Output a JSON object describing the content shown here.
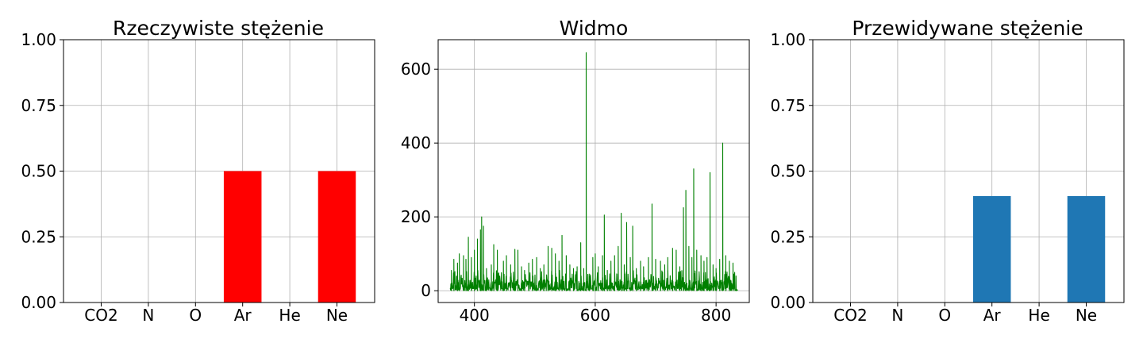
{
  "chart_data": [
    {
      "type": "bar",
      "title": "Rzeczywiste stężenie",
      "categories": [
        "CO2",
        "N",
        "O",
        "Ar",
        "He",
        "Ne"
      ],
      "values": [
        0,
        0,
        0,
        0.5,
        0,
        0.5
      ],
      "ylim": [
        0,
        1
      ],
      "yticks": [
        0,
        0.25,
        0.5,
        0.75,
        1.0
      ],
      "ytick_labels": [
        "0.00",
        "0.25",
        "0.50",
        "0.75",
        "1.00"
      ],
      "xlabel": "",
      "ylabel": "",
      "color": "#ff0000",
      "grid": true
    },
    {
      "type": "line",
      "title": "Widmo",
      "x_range": [
        360,
        836
      ],
      "xlim": [
        340,
        855
      ],
      "xticks": [
        400,
        600,
        800
      ],
      "xtick_labels": [
        "400",
        "600",
        "800"
      ],
      "ylim": [
        -32,
        680
      ],
      "yticks": [
        0,
        200,
        400,
        600
      ],
      "ytick_labels": [
        "0",
        "200",
        "400",
        "600"
      ],
      "xlabel": "",
      "ylabel": "",
      "color": "#008000",
      "grid": true,
      "peaks": [
        {
          "x": 362,
          "y": 55
        },
        {
          "x": 366,
          "y": 85
        },
        {
          "x": 372,
          "y": 75
        },
        {
          "x": 375,
          "y": 100
        },
        {
          "x": 382,
          "y": 95
        },
        {
          "x": 386,
          "y": 85
        },
        {
          "x": 390,
          "y": 145
        },
        {
          "x": 395,
          "y": 90
        },
        {
          "x": 400,
          "y": 110
        },
        {
          "x": 405,
          "y": 140
        },
        {
          "x": 410,
          "y": 165
        },
        {
          "x": 412,
          "y": 200
        },
        {
          "x": 415,
          "y": 175
        },
        {
          "x": 420,
          "y": 60
        },
        {
          "x": 428,
          "y": 70
        },
        {
          "x": 432,
          "y": 125
        },
        {
          "x": 438,
          "y": 110
        },
        {
          "x": 448,
          "y": 80
        },
        {
          "x": 453,
          "y": 95
        },
        {
          "x": 460,
          "y": 70
        },
        {
          "x": 467,
          "y": 112
        },
        {
          "x": 472,
          "y": 110
        },
        {
          "x": 478,
          "y": 65
        },
        {
          "x": 483,
          "y": 55
        },
        {
          "x": 490,
          "y": 75
        },
        {
          "x": 496,
          "y": 85
        },
        {
          "x": 503,
          "y": 90
        },
        {
          "x": 509,
          "y": 60
        },
        {
          "x": 515,
          "y": 70
        },
        {
          "x": 522,
          "y": 120
        },
        {
          "x": 528,
          "y": 115
        },
        {
          "x": 534,
          "y": 100
        },
        {
          "x": 540,
          "y": 80
        },
        {
          "x": 545,
          "y": 150
        },
        {
          "x": 552,
          "y": 95
        },
        {
          "x": 558,
          "y": 70
        },
        {
          "x": 564,
          "y": 60
        },
        {
          "x": 570,
          "y": 65
        },
        {
          "x": 576,
          "y": 130
        },
        {
          "x": 581,
          "y": 60
        },
        {
          "x": 585,
          "y": 645
        },
        {
          "x": 590,
          "y": 45
        },
        {
          "x": 596,
          "y": 90
        },
        {
          "x": 600,
          "y": 100
        },
        {
          "x": 605,
          "y": 65
        },
        {
          "x": 612,
          "y": 95
        },
        {
          "x": 615,
          "y": 205
        },
        {
          "x": 620,
          "y": 55
        },
        {
          "x": 626,
          "y": 80
        },
        {
          "x": 632,
          "y": 95
        },
        {
          "x": 638,
          "y": 120
        },
        {
          "x": 643,
          "y": 210
        },
        {
          "x": 648,
          "y": 70
        },
        {
          "x": 652,
          "y": 185
        },
        {
          "x": 658,
          "y": 90
        },
        {
          "x": 662,
          "y": 175
        },
        {
          "x": 668,
          "y": 60
        },
        {
          "x": 675,
          "y": 80
        },
        {
          "x": 680,
          "y": 65
        },
        {
          "x": 688,
          "y": 90
        },
        {
          "x": 694,
          "y": 235
        },
        {
          "x": 700,
          "y": 85
        },
        {
          "x": 708,
          "y": 80
        },
        {
          "x": 715,
          "y": 70
        },
        {
          "x": 720,
          "y": 90
        },
        {
          "x": 728,
          "y": 115
        },
        {
          "x": 734,
          "y": 110
        },
        {
          "x": 740,
          "y": 65
        },
        {
          "x": 746,
          "y": 225
        },
        {
          "x": 750,
          "y": 272
        },
        {
          "x": 755,
          "y": 120
        },
        {
          "x": 760,
          "y": 90
        },
        {
          "x": 763,
          "y": 330
        },
        {
          "x": 768,
          "y": 110
        },
        {
          "x": 775,
          "y": 95
        },
        {
          "x": 780,
          "y": 80
        },
        {
          "x": 785,
          "y": 90
        },
        {
          "x": 790,
          "y": 320
        },
        {
          "x": 795,
          "y": 70
        },
        {
          "x": 800,
          "y": 60
        },
        {
          "x": 806,
          "y": 85
        },
        {
          "x": 811,
          "y": 400
        },
        {
          "x": 816,
          "y": 95
        },
        {
          "x": 822,
          "y": 80
        },
        {
          "x": 828,
          "y": 75
        },
        {
          "x": 833,
          "y": 40
        }
      ]
    },
    {
      "type": "bar",
      "title": "Przewidywane stężenie",
      "categories": [
        "CO2",
        "N",
        "O",
        "Ar",
        "He",
        "Ne"
      ],
      "values": [
        0,
        0,
        0,
        0.405,
        0,
        0.405
      ],
      "ylim": [
        0,
        1
      ],
      "yticks": [
        0,
        0.25,
        0.5,
        0.75,
        1.0
      ],
      "ytick_labels": [
        "0.00",
        "0.25",
        "0.50",
        "0.75",
        "1.00"
      ],
      "xlabel": "",
      "ylabel": "",
      "color": "#1f77b4",
      "grid": true
    }
  ]
}
